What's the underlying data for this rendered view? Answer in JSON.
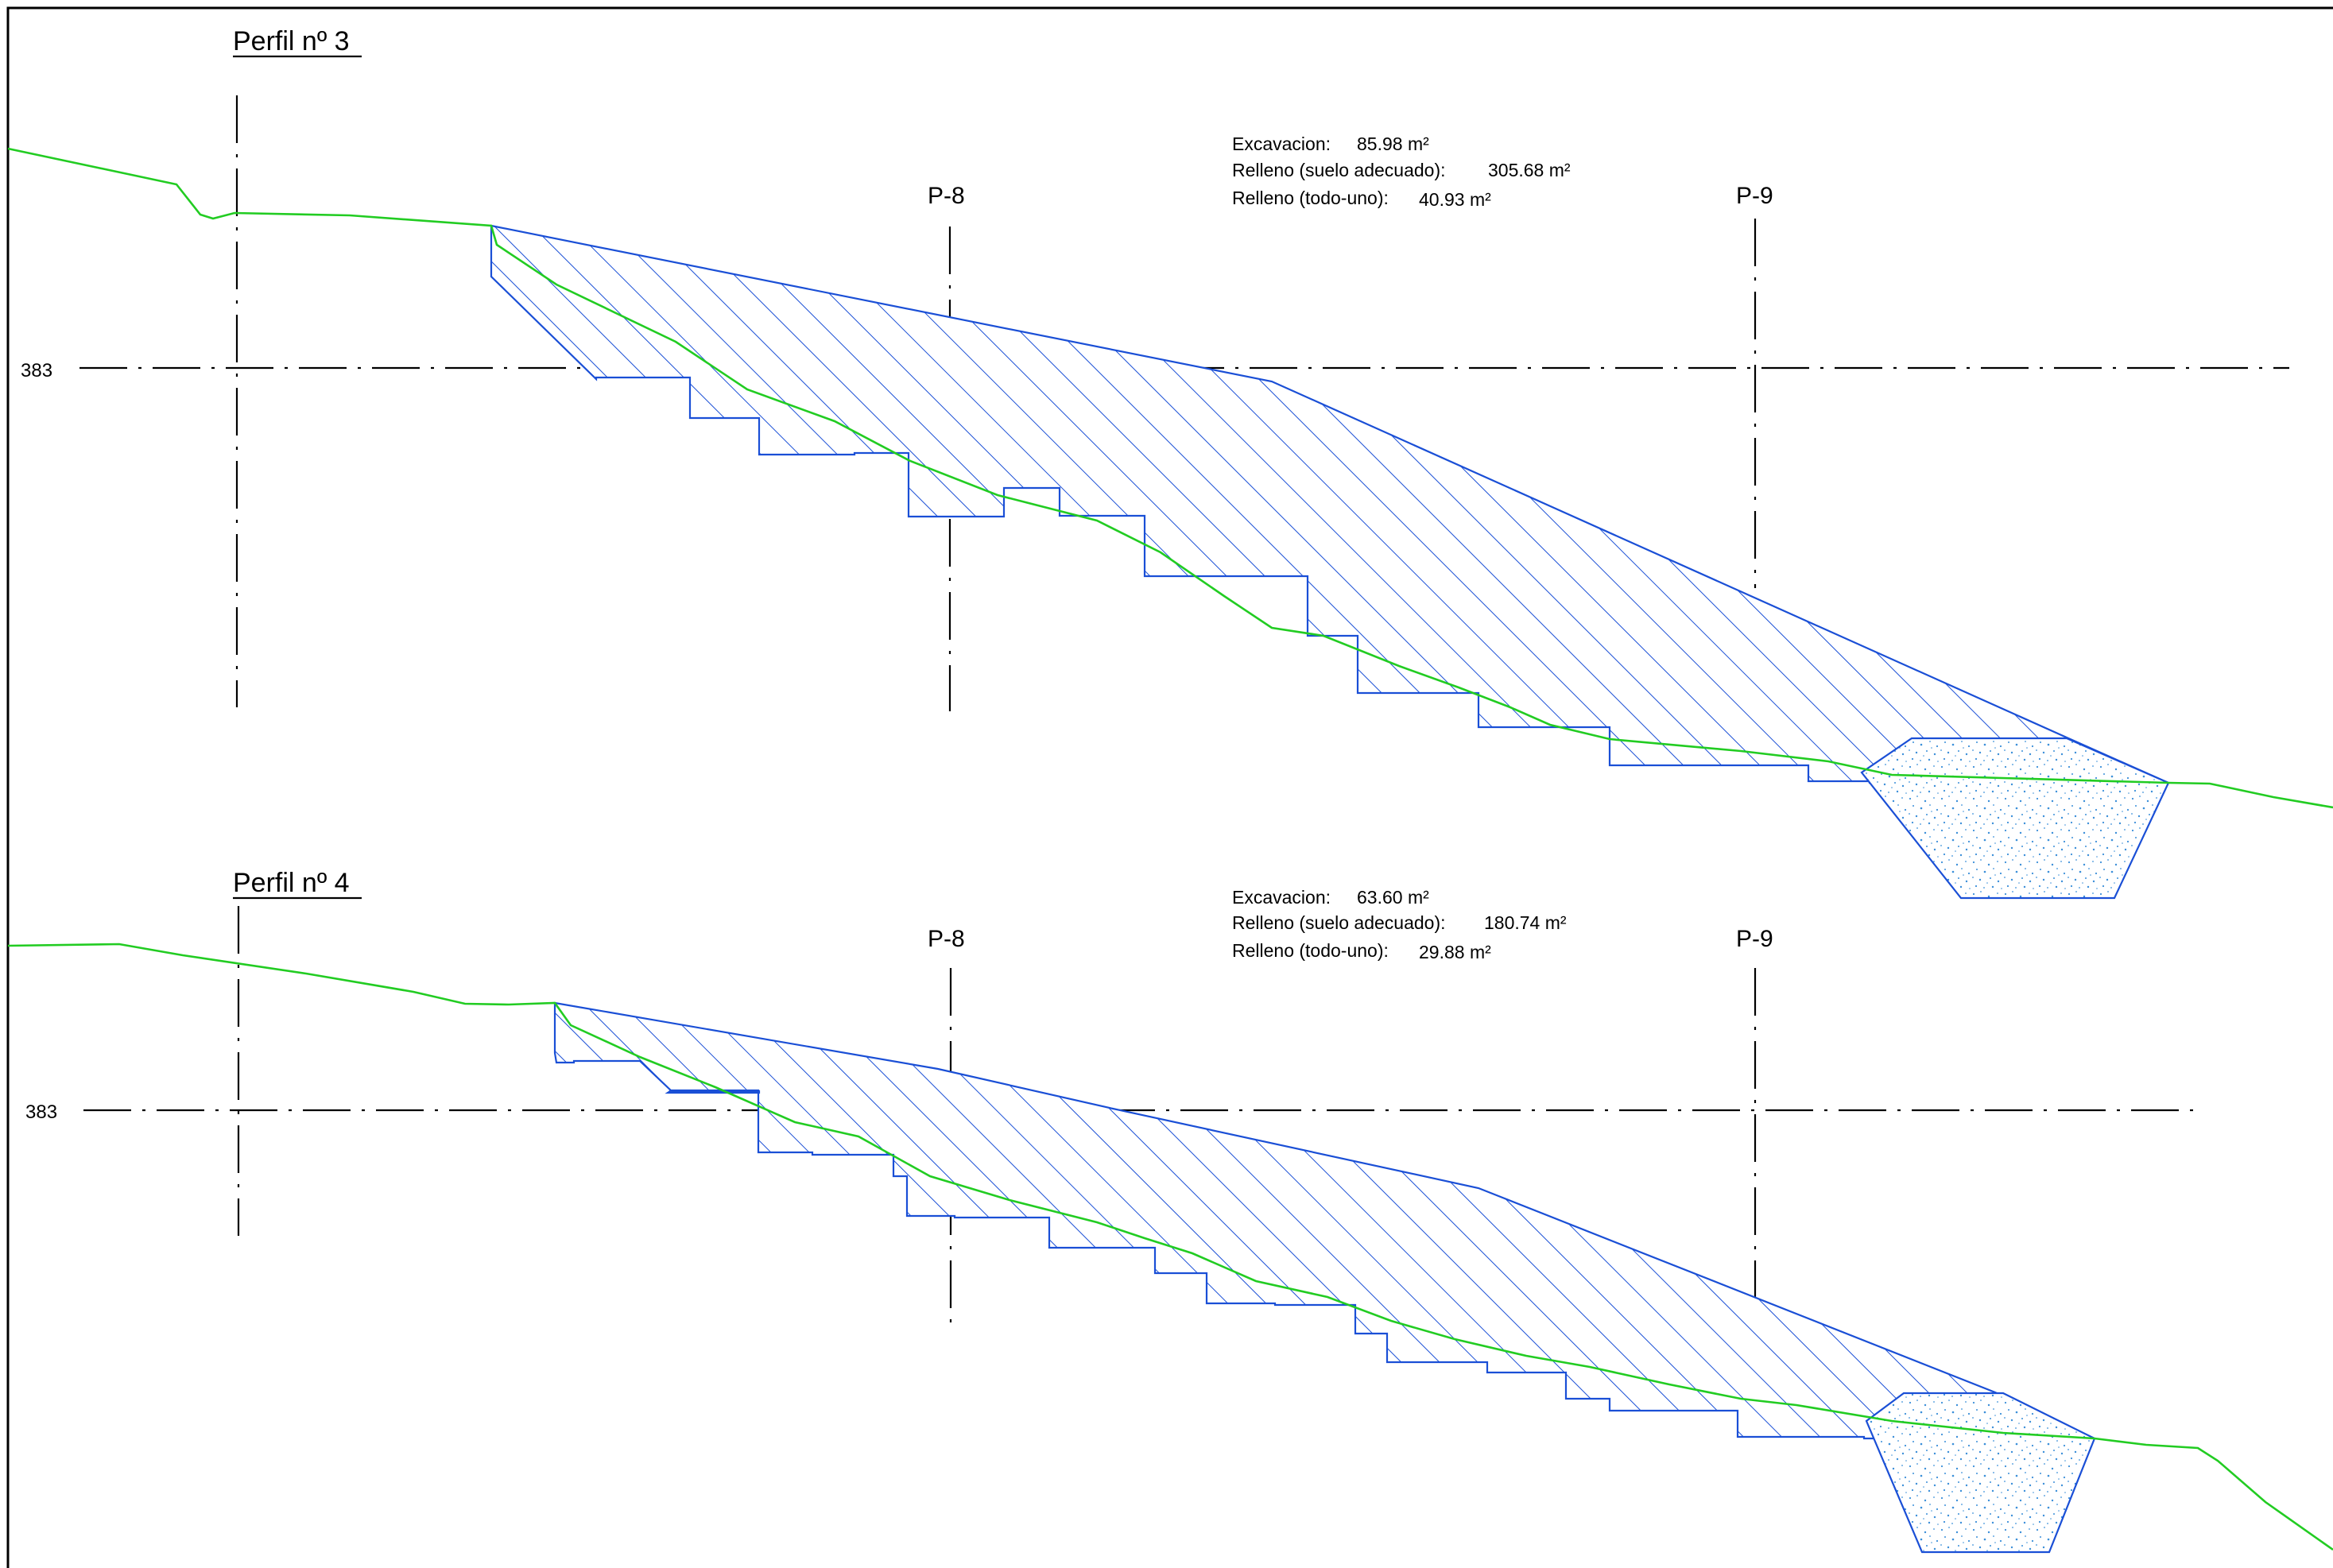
{
  "colors": {
    "terrain": "#22cc22",
    "section_outline": "#1a4fd6",
    "hatch": "#1a4fd6",
    "todo_uno_speckle": "#3b8fd9",
    "axes": "#000000",
    "background": "#ffffff"
  },
  "profiles": [
    {
      "title": "Perfil nº 3",
      "reference_elevation": "383",
      "stations": [
        "P-8",
        "P-9"
      ],
      "areas": [
        {
          "label": "Excavacion:",
          "value": "85.98 m²"
        },
        {
          "label": "Relleno (suelo adecuado):",
          "value": "305.68 m²"
        },
        {
          "label": "Relleno (todo-uno):",
          "value": "40.93 m²"
        }
      ]
    },
    {
      "title": "Perfil nº 4",
      "reference_elevation": "383",
      "stations": [
        "P-8",
        "P-9"
      ],
      "areas": [
        {
          "label": "Excavacion:",
          "value": "63.60 m²"
        },
        {
          "label": "Relleno (suelo adecuado):",
          "value": "180.74 m²"
        },
        {
          "label": "Relleno (todo-uno):",
          "value": "29.88 m²"
        }
      ]
    }
  ]
}
